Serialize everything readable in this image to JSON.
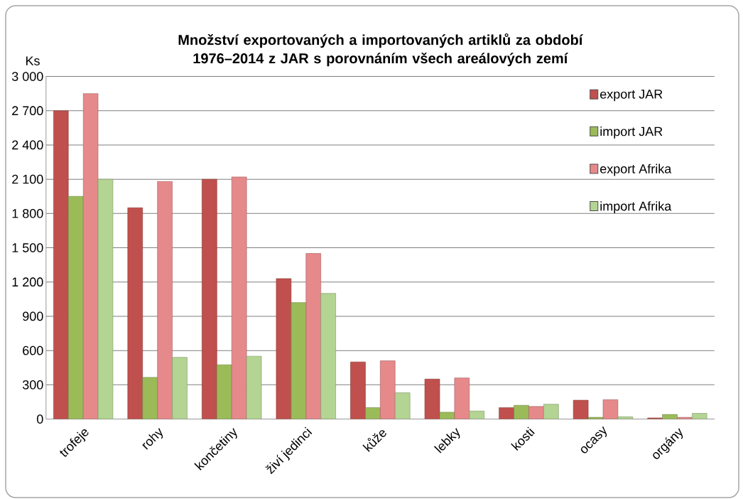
{
  "chart_data": {
    "type": "bar",
    "title": "Množství exportovaných a importovaných artiklů za období 1976–2014 z JAR s porovnáním všech areálových zemí",
    "ylabel": "Ks",
    "categories": [
      "trofeje",
      "rohy",
      "končetiny",
      "živí jedinci",
      "kůže",
      "lebky",
      "kosti",
      "ocasy",
      "orgány"
    ],
    "series": [
      {
        "name": "export JAR",
        "color": "#c0504d",
        "values": [
          2700,
          1850,
          2100,
          1230,
          500,
          350,
          100,
          165,
          10
        ]
      },
      {
        "name": "import JAR",
        "color": "#9bbb59",
        "values": [
          1950,
          365,
          475,
          1020,
          100,
          60,
          120,
          15,
          40
        ]
      },
      {
        "name": "export Afrika",
        "color": "#e6898a",
        "values": [
          2850,
          2080,
          2120,
          1450,
          510,
          360,
          110,
          170,
          15
        ]
      },
      {
        "name": "import Afrika",
        "color": "#b3d492",
        "values": [
          2100,
          540,
          550,
          1100,
          230,
          70,
          130,
          20,
          50
        ]
      }
    ],
    "ylim": [
      0,
      3000
    ],
    "yticks": [
      0,
      300,
      600,
      900,
      {
        "value": 1200,
        "label": "1 200"
      },
      {
        "value": 1500,
        "label": "1 500"
      },
      {
        "value": 1800,
        "label": "1 800"
      },
      {
        "value": 2100,
        "label": "2 100"
      },
      {
        "value": 2400,
        "label": "2 400"
      },
      {
        "value": 2700,
        "label": "2 700"
      },
      {
        "value": 3000,
        "label": "3 000"
      }
    ],
    "grid": "y",
    "legend": "top right"
  }
}
